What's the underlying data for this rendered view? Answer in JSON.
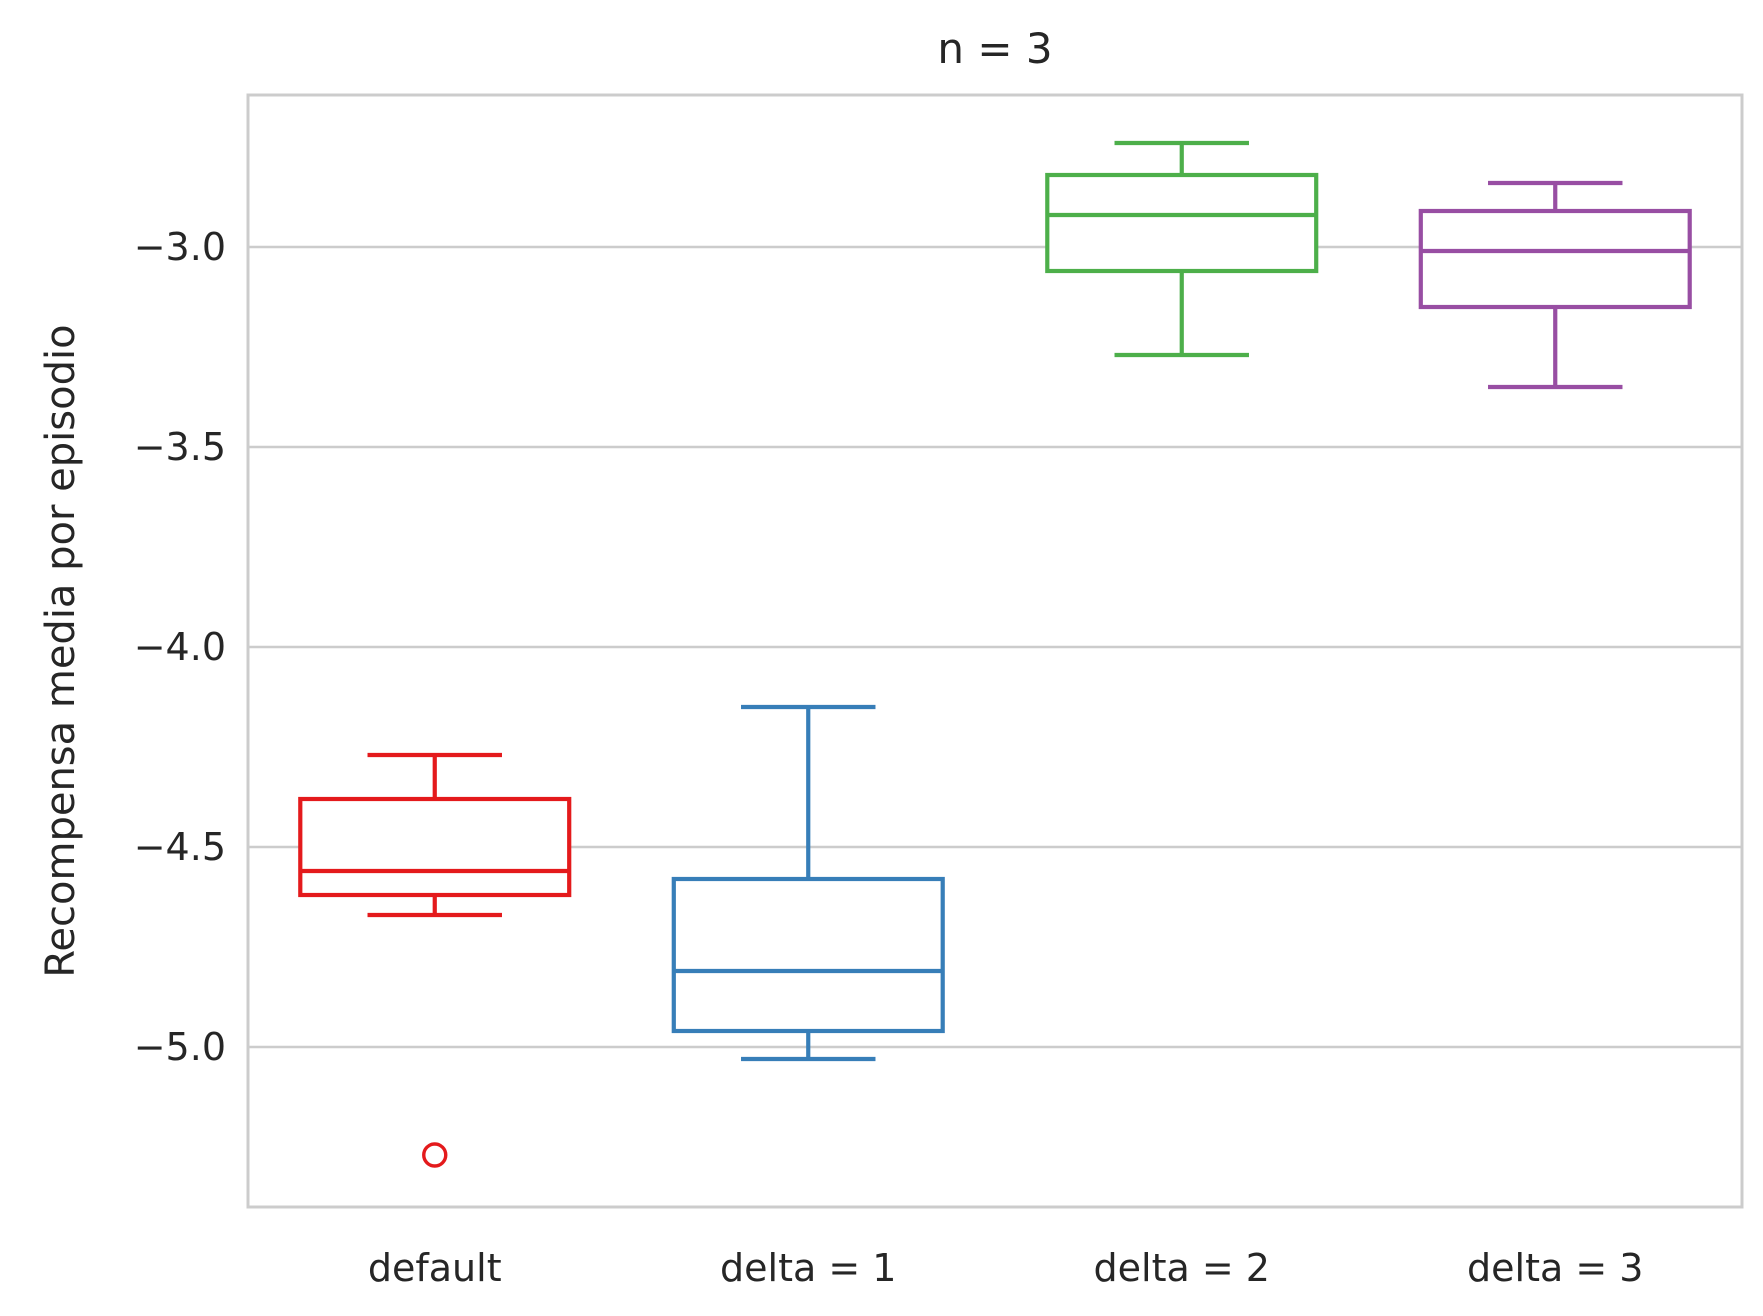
{
  "chart_data": {
    "type": "box",
    "title": "n = 3",
    "xlabel": "",
    "ylabel": "Recompensa media por episodio",
    "ylim": [
      -5.4,
      -2.62
    ],
    "yticks": [
      -3.0,
      -3.5,
      -4.0,
      -4.5,
      -5.0
    ],
    "ytick_labels": [
      "−3.0",
      "−3.5",
      "−4.0",
      "−4.5",
      "−5.0"
    ],
    "grid": "horizontal",
    "categories": [
      "default",
      "delta = 1",
      "delta = 2",
      "delta = 3"
    ],
    "series": [
      {
        "category": "default",
        "color": "#e41a1c",
        "whisker_low": -4.67,
        "q1": -4.62,
        "median": -4.56,
        "q3": -4.38,
        "whisker_high": -4.27,
        "outliers": [
          -5.27
        ]
      },
      {
        "category": "delta = 1",
        "color": "#377eb8",
        "whisker_low": -5.03,
        "q1": -4.96,
        "median": -4.81,
        "q3": -4.58,
        "whisker_high": -4.15,
        "outliers": []
      },
      {
        "category": "delta = 2",
        "color": "#4daf4a",
        "whisker_low": -3.27,
        "q1": -3.06,
        "median": -2.92,
        "q3": -2.82,
        "whisker_high": -2.74,
        "outliers": []
      },
      {
        "category": "delta = 3",
        "color": "#984ea3",
        "whisker_low": -3.35,
        "q1": -3.15,
        "median": -3.01,
        "q3": -2.91,
        "whisker_high": -2.84,
        "outliers": []
      }
    ]
  }
}
